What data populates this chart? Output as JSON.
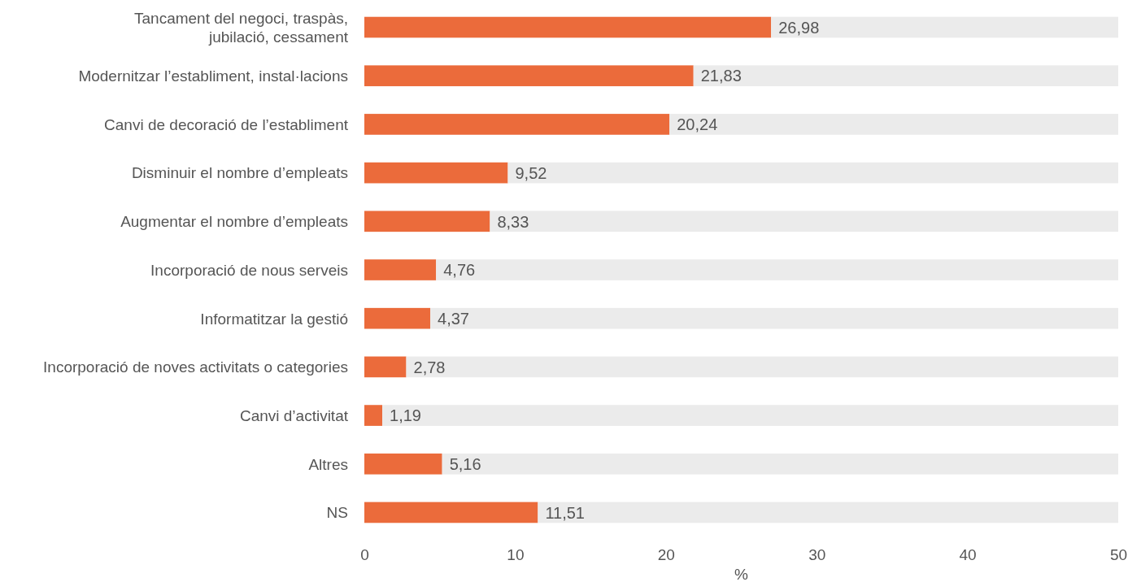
{
  "chart_data": {
    "type": "bar",
    "orientation": "horizontal",
    "xlabel": "%",
    "categories": [
      "Tancament del negoci, traspàs,\njubilació, cessament",
      "Modernitzar l’establiment, instal·lacions",
      "Canvi de decoració de l’establiment",
      "Disminuir el nombre d’empleats",
      "Augmentar el nombre d’empleats",
      "Incorporació de nous serveis",
      "Informatitzar la gestió",
      "Incorporació de noves activitats o categories",
      "Canvi d’activitat",
      "Altres",
      "NS"
    ],
    "series": [
      {
        "color": "#eb6b3b",
        "values": [
          26.98,
          21.83,
          20.24,
          9.52,
          8.33,
          4.76,
          4.37,
          2.78,
          1.19,
          5.16,
          11.51
        ],
        "value_labels": [
          "26,98",
          "21,83",
          "20,24",
          "9,52",
          "8,33",
          "4,76",
          "4,37",
          "2,78",
          "1,19",
          "5,16",
          "11,51"
        ]
      },
      {
        "color": "#ebebeb",
        "values": [
          23.02,
          28.17,
          29.76,
          40.48,
          41.67,
          45.24,
          45.63,
          47.22,
          48.81,
          44.84,
          38.49
        ]
      }
    ],
    "stacked": true,
    "xlim": [
      0,
      50
    ],
    "xticks": [
      0,
      10,
      20,
      30,
      40,
      50
    ],
    "grid": false
  }
}
